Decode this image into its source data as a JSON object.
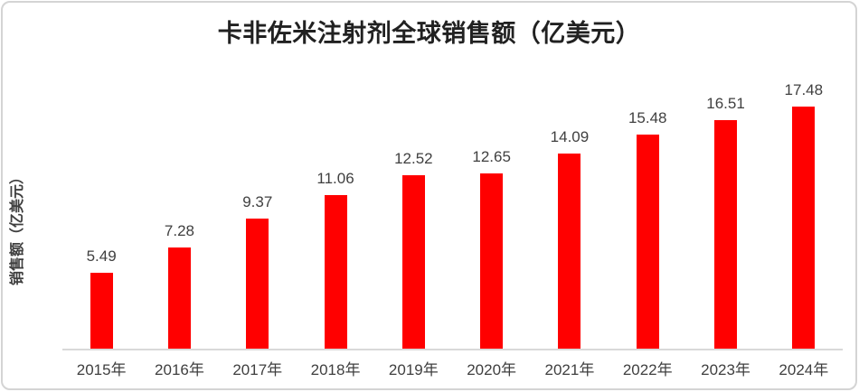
{
  "chart_data": {
    "type": "bar",
    "title": "卡非佐米注射剂全球销售额（亿美元）",
    "ylabel": "销售额（亿美元）",
    "xlabel": "",
    "categories": [
      "2015年",
      "2016年",
      "2017年",
      "2018年",
      "2019年",
      "2020年",
      "2021年",
      "2022年",
      "2023年",
      "2024年"
    ],
    "values": [
      5.49,
      7.28,
      9.37,
      11.06,
      12.52,
      12.65,
      14.09,
      15.48,
      16.51,
      17.48
    ],
    "value_labels": [
      "5.49",
      "7.28",
      "9.37",
      "11.06",
      "12.52",
      "12.65",
      "14.09",
      "15.48",
      "16.51",
      "17.48"
    ],
    "ylim": [
      0,
      18
    ],
    "grid": false,
    "legend": "none",
    "bar_color": "#ff0000",
    "value_label_color": "#404040",
    "tick_label_color": "#3f3f3f",
    "title_color": "#212121",
    "axis_line_color": "#d9d9d9",
    "card_border_color": "#d4d4d4"
  }
}
